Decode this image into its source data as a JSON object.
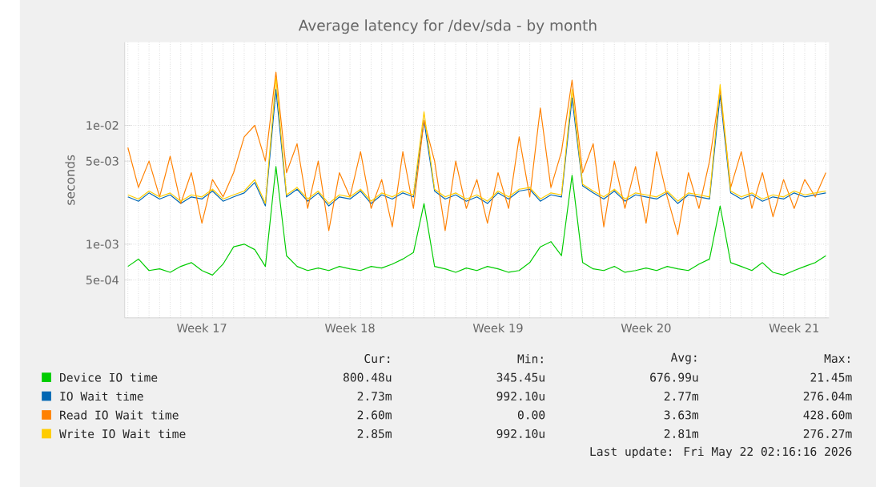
{
  "chart_data": {
    "type": "line",
    "title": "Average latency for /dev/sda - by month",
    "ylabel": "seconds",
    "log": "y",
    "grid": true,
    "legend": "bottom",
    "ylim": [
      0.00024,
      0.05
    ],
    "yticks": [
      {
        "value": 0.0005,
        "label": "5e-04"
      },
      {
        "value": 0.001,
        "label": "1e-03"
      },
      {
        "value": 0.005,
        "label": "5e-03"
      },
      {
        "value": 0.01,
        "label": "1e-02"
      }
    ],
    "categories": [
      null,
      null,
      null,
      null,
      null,
      null,
      null,
      "Week 17",
      null,
      null,
      null,
      null,
      null,
      null,
      null,
      null,
      null,
      null,
      null,
      null,
      null,
      "Week 18",
      null,
      null,
      null,
      null,
      null,
      null,
      null,
      null,
      null,
      null,
      null,
      null,
      null,
      "Week 19",
      null,
      null,
      null,
      null,
      null,
      null,
      null,
      null,
      null,
      null,
      null,
      null,
      null,
      "Week 20",
      null,
      null,
      null,
      null,
      null,
      null,
      null,
      null,
      null,
      null,
      null,
      null,
      null,
      "Week 21",
      null,
      null,
      null
    ],
    "series": [
      {
        "name": "Device IO time",
        "color": "#00cc00",
        "values": [
          0.00065,
          0.00075,
          0.0006,
          0.00062,
          0.00058,
          0.00065,
          0.0007,
          0.0006,
          0.00055,
          0.00068,
          0.00095,
          0.001,
          0.0009,
          0.00065,
          0.0045,
          0.0008,
          0.00065,
          0.0006,
          0.00063,
          0.0006,
          0.00065,
          0.00062,
          0.0006,
          0.00065,
          0.00063,
          0.00068,
          0.00075,
          0.00085,
          0.0022,
          0.00065,
          0.00062,
          0.00058,
          0.00063,
          0.0006,
          0.00065,
          0.00062,
          0.00058,
          0.0006,
          0.0007,
          0.00095,
          0.00105,
          0.0008,
          0.0038,
          0.0007,
          0.00062,
          0.0006,
          0.00065,
          0.00058,
          0.0006,
          0.00063,
          0.0006,
          0.00065,
          0.00062,
          0.0006,
          0.00068,
          0.00075,
          0.0021,
          0.0007,
          0.00065,
          0.0006,
          0.0007,
          0.00058,
          0.00055,
          0.0006,
          0.00065,
          0.0007,
          0.0008
        ]
      },
      {
        "name": "IO Wait time",
        "color": "#0066b3",
        "values": [
          0.0025,
          0.0023,
          0.0027,
          0.0024,
          0.0026,
          0.0022,
          0.0025,
          0.0024,
          0.0028,
          0.0023,
          0.0025,
          0.0027,
          0.0033,
          0.0021,
          0.02,
          0.0025,
          0.0029,
          0.0023,
          0.0027,
          0.0021,
          0.0025,
          0.0024,
          0.0028,
          0.0022,
          0.0026,
          0.0024,
          0.0027,
          0.0025,
          0.011,
          0.0028,
          0.0024,
          0.0026,
          0.0023,
          0.0025,
          0.0022,
          0.0027,
          0.0024,
          0.0028,
          0.0029,
          0.0023,
          0.0026,
          0.0025,
          0.017,
          0.0031,
          0.0027,
          0.0024,
          0.0028,
          0.0023,
          0.0026,
          0.0025,
          0.0024,
          0.0027,
          0.0022,
          0.0026,
          0.0025,
          0.0024,
          0.018,
          0.0027,
          0.0024,
          0.0026,
          0.0023,
          0.0025,
          0.0024,
          0.0027,
          0.0025,
          0.0026,
          0.0027
        ]
      },
      {
        "name": "Read IO Wait time",
        "color": "#ff8000",
        "values": [
          0.0065,
          0.003,
          0.005,
          0.0025,
          0.0055,
          0.0022,
          0.004,
          0.0015,
          0.0035,
          0.0025,
          0.004,
          0.008,
          0.01,
          0.005,
          0.028,
          0.004,
          0.007,
          0.002,
          0.005,
          0.0013,
          0.004,
          0.0025,
          0.006,
          0.002,
          0.0035,
          0.0014,
          0.006,
          0.002,
          0.011,
          0.005,
          0.0013,
          0.005,
          0.002,
          0.0035,
          0.0015,
          0.004,
          0.002,
          0.008,
          0.0025,
          0.014,
          0.003,
          0.006,
          0.024,
          0.004,
          0.007,
          0.0014,
          0.005,
          0.002,
          0.0045,
          0.0015,
          0.006,
          0.0025,
          0.0012,
          0.004,
          0.002,
          0.005,
          0.02,
          0.003,
          0.006,
          0.002,
          0.004,
          0.0017,
          0.0035,
          0.002,
          0.0035,
          0.0025,
          0.004
        ]
      },
      {
        "name": "Write IO Wait time",
        "color": "#ffcc00",
        "values": [
          0.0026,
          0.0024,
          0.0028,
          0.0025,
          0.0027,
          0.0023,
          0.0026,
          0.0025,
          0.0029,
          0.0024,
          0.0026,
          0.0028,
          0.0035,
          0.0022,
          0.025,
          0.0026,
          0.003,
          0.0024,
          0.0028,
          0.0022,
          0.0026,
          0.0025,
          0.0029,
          0.0023,
          0.0027,
          0.0025,
          0.0028,
          0.0026,
          0.013,
          0.0029,
          0.0025,
          0.0027,
          0.0024,
          0.0026,
          0.0023,
          0.0028,
          0.0025,
          0.0029,
          0.003,
          0.0024,
          0.0027,
          0.0026,
          0.02,
          0.0032,
          0.0028,
          0.0025,
          0.0029,
          0.0024,
          0.0027,
          0.0026,
          0.0025,
          0.0028,
          0.0023,
          0.0027,
          0.0026,
          0.0025,
          0.022,
          0.0028,
          0.0025,
          0.0027,
          0.0024,
          0.0026,
          0.0025,
          0.0028,
          0.0026,
          0.0027,
          0.0028
        ]
      }
    ],
    "annotations": [
      "Cur:",
      "Min:",
      "Avg:",
      "Max:",
      "800.48u",
      "345.45u",
      "676.99u",
      "21.45m",
      "2.73m",
      "992.10u",
      "2.77m",
      "276.04m",
      "2.60m",
      "0.00",
      "3.63m",
      "428.60m",
      "2.85m",
      "992.10u",
      "2.81m",
      "276.27m",
      "Last update: Fri May 22 02:16:16 2026"
    ]
  }
}
